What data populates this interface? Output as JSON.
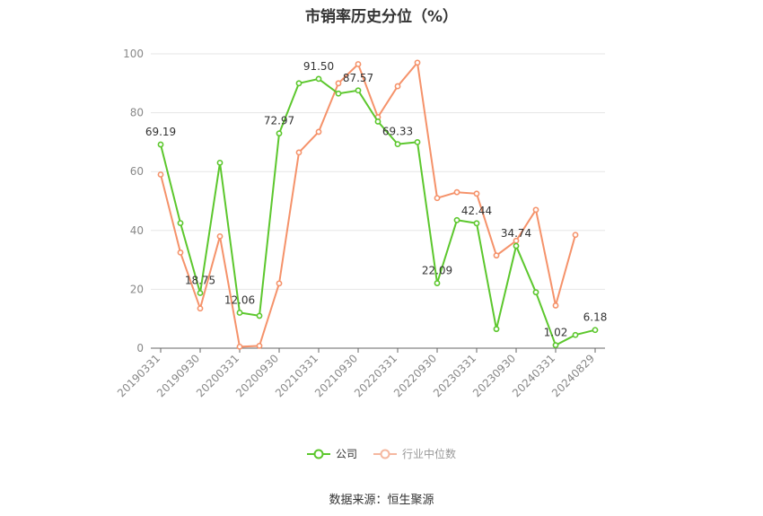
{
  "chart_data": {
    "type": "line",
    "title": "市销率历史分位（%）",
    "ylim": [
      0,
      100
    ],
    "yticks": [
      0,
      20,
      40,
      60,
      80,
      100
    ],
    "x": [
      "20190331",
      "20190630",
      "20190930",
      "20191231",
      "20200331",
      "20200630",
      "20200930",
      "20201231",
      "20210331",
      "20210630",
      "20210930",
      "20211231",
      "20220331",
      "20220630",
      "20220930",
      "20221231",
      "20230331",
      "20230630",
      "20230930",
      "20231231",
      "20240331",
      "20240630",
      "20240829"
    ],
    "xtick_labels": [
      "20190331",
      "20190930",
      "20200331",
      "20200930",
      "20210331",
      "20210930",
      "20220331",
      "20220930",
      "20230331",
      "20230930",
      "20240331",
      "20240829"
    ],
    "series": [
      {
        "name": "公司",
        "color": "#5cc72d",
        "values": [
          69.19,
          42.5,
          18.75,
          63.0,
          12.06,
          11.0,
          72.97,
          90.0,
          91.5,
          86.5,
          87.57,
          77.0,
          69.33,
          70.0,
          22.09,
          43.5,
          42.44,
          6.5,
          34.74,
          19.0,
          1.02,
          4.5,
          6.18
        ],
        "labels": {
          "0": "69.19",
          "2": "18.75",
          "4": "12.06",
          "6": "72.97",
          "8": "91.50",
          "10": "87.57",
          "12": "69.33",
          "14": "22.09",
          "16": "42.44",
          "18": "34.74",
          "20": "1.02",
          "22": "6.18"
        }
      },
      {
        "name": "行业中位数",
        "color": "#f5926a",
        "values": [
          59.0,
          32.5,
          13.5,
          38.0,
          0.5,
          0.8,
          22.0,
          66.5,
          73.5,
          90.0,
          96.5,
          78.5,
          89.0,
          97.0,
          51.0,
          53.0,
          52.5,
          31.5,
          36.5,
          47.0,
          14.5,
          38.5,
          null
        ]
      }
    ],
    "grid": true,
    "legend_position": "bottom"
  },
  "source_text": "数据来源：恒生聚源"
}
